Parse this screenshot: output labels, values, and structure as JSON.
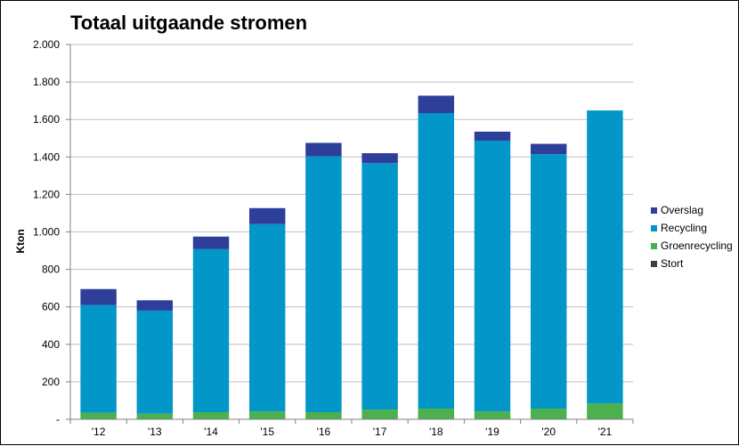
{
  "chart_data": {
    "type": "bar",
    "stacked": true,
    "title": "Totaal uitgaande stromen",
    "xlabel": "",
    "ylabel": "Kton",
    "categories": [
      "'12",
      "'13",
      "'14",
      "'15",
      "'16",
      "'17",
      "'18",
      "'19",
      "'20",
      "'21"
    ],
    "ylim": [
      0,
      2000
    ],
    "yticks": [
      0,
      200,
      400,
      600,
      800,
      1000,
      1200,
      1400,
      1600,
      1800,
      2000
    ],
    "ytick_labels": [
      "-",
      "200",
      "400",
      "600",
      "800",
      "1.000",
      "1.200",
      "1.400",
      "1.600",
      "1.800",
      "2.000"
    ],
    "grid": true,
    "legend_position": "right",
    "series": [
      {
        "name": "Stort",
        "color": "#404040",
        "values": [
          0,
          0,
          0,
          0,
          0,
          0,
          0,
          0,
          0,
          0
        ]
      },
      {
        "name": "Groenrecycling",
        "color": "#4db04f",
        "values": [
          35,
          30,
          38,
          42,
          38,
          52,
          57,
          42,
          57,
          85
        ]
      },
      {
        "name": "Recycling",
        "color": "#0396c9",
        "values": [
          575,
          550,
          870,
          1000,
          1365,
          1315,
          1577,
          1445,
          1358,
          1563
        ]
      },
      {
        "name": "Overslag",
        "color": "#2e3f9a",
        "values": [
          85,
          55,
          67,
          85,
          72,
          53,
          93,
          48,
          55,
          0
        ]
      }
    ],
    "legend_order": [
      "Overslag",
      "Recycling",
      "Groenrecycling",
      "Stort"
    ]
  }
}
